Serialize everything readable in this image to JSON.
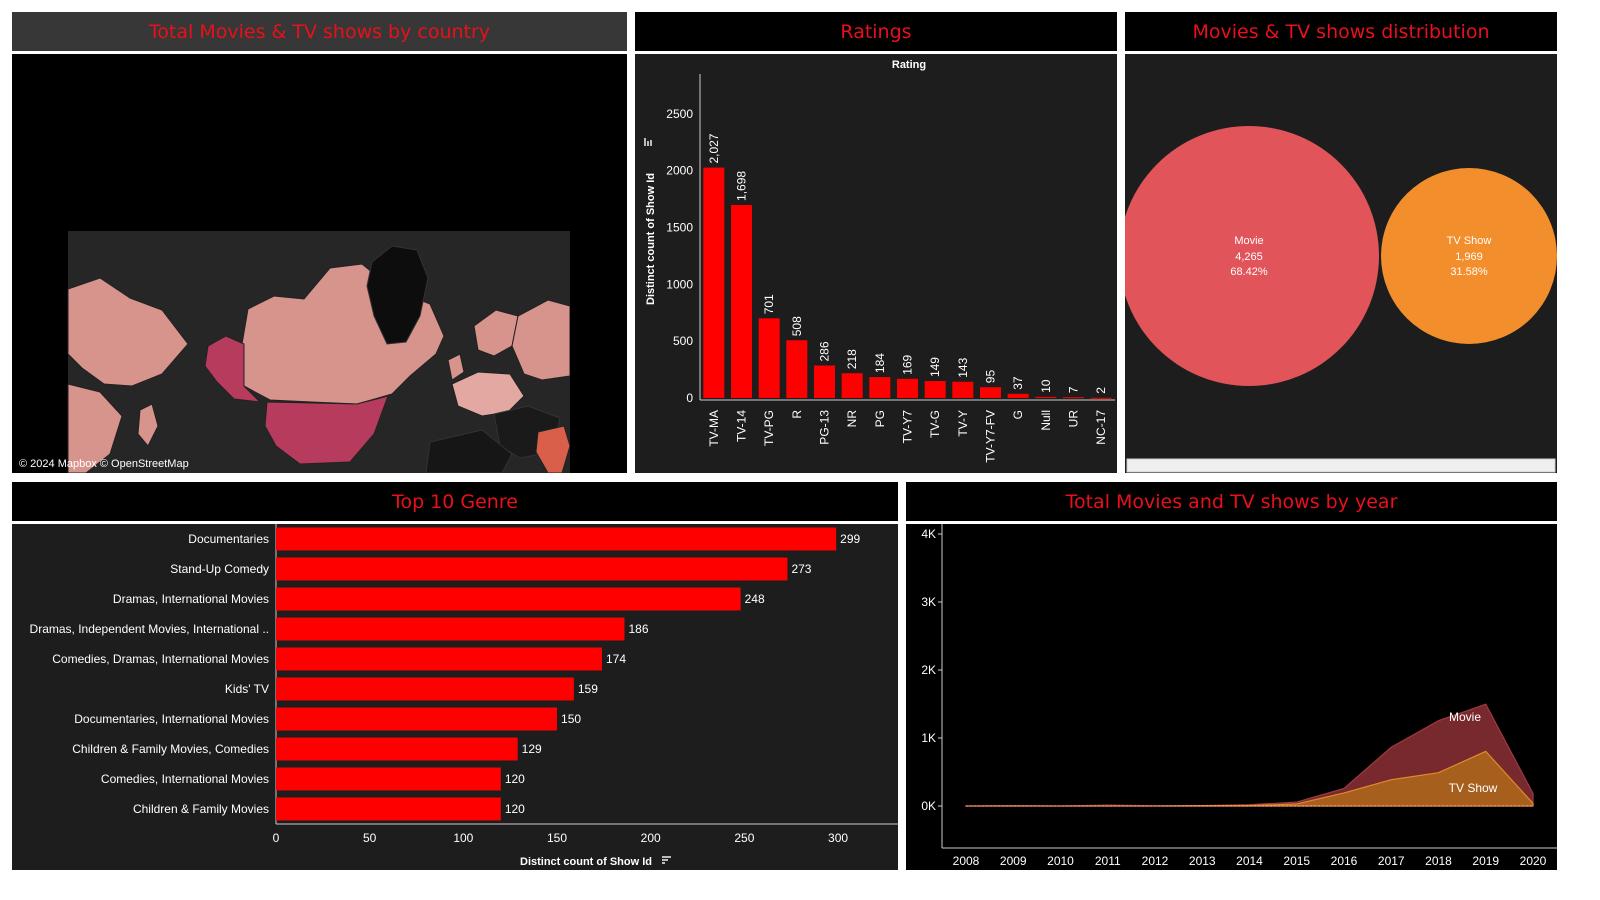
{
  "titles": {
    "map": "Total Movies & TV shows by country",
    "ratings": "Ratings",
    "distribution": "Movies & TV shows distribution",
    "genre": "Top 10 Genre",
    "year": "Total Movies and TV shows by year"
  },
  "map": {
    "attribution": "© 2024 Mapbox © OpenStreetMap"
  },
  "colors": {
    "bar": "#ff0000",
    "title": "#e8101a",
    "movie_bubble": "#e0545a",
    "tv_bubble": "#f28e2b",
    "movie_area": "#7e2b30",
    "tv_area": "#a9621b"
  },
  "chart_data": [
    {
      "id": "ratings",
      "type": "bar",
      "title": "Rating",
      "ylabel": "Distinct count of Show Id",
      "categories": [
        "TV-MA",
        "TV-14",
        "TV-PG",
        "R",
        "PG-13",
        "NR",
        "PG",
        "TV-Y7",
        "TV-G",
        "TV-Y",
        "TV-Y7-FV",
        "G",
        "Null",
        "UR",
        "NC-17"
      ],
      "values": [
        2027,
        1698,
        701,
        508,
        286,
        218,
        184,
        169,
        149,
        143,
        95,
        37,
        10,
        7,
        2
      ],
      "value_labels": [
        "2,027",
        "1,698",
        "701",
        "508",
        "286",
        "218",
        "184",
        "169",
        "149",
        "143",
        "95",
        "37",
        "10",
        "7",
        "2"
      ],
      "yticks": [
        "0",
        "500",
        "1000",
        "1500",
        "2000",
        "2500"
      ],
      "ylim": [
        0,
        2850
      ]
    },
    {
      "id": "distribution",
      "type": "bubble",
      "series": [
        {
          "name": "Movie",
          "value": 4265,
          "value_label": "4,265",
          "percent": "68.42%"
        },
        {
          "name": "TV Show",
          "value": 1969,
          "value_label": "1,969",
          "percent": "31.58%"
        }
      ]
    },
    {
      "id": "genre",
      "type": "bar",
      "orientation": "horizontal",
      "xlabel": "Distinct count of Show Id",
      "categories": [
        "Documentaries",
        "Stand-Up Comedy",
        "Dramas, International Movies",
        "Dramas, Independent Movies, International ..",
        "Comedies, Dramas, International Movies",
        "Kids' TV",
        "Documentaries, International Movies",
        "Children & Family Movies, Comedies",
        "Comedies, International Movies",
        "Children & Family Movies"
      ],
      "values": [
        299,
        273,
        248,
        186,
        174,
        159,
        150,
        129,
        120,
        120
      ],
      "xticks": [
        "0",
        "50",
        "100",
        "150",
        "200",
        "250",
        "300"
      ],
      "xlim": [
        0,
        332
      ]
    },
    {
      "id": "year",
      "type": "area",
      "stacked": false,
      "x": [
        "2008",
        "2009",
        "2010",
        "2011",
        "2012",
        "2013",
        "2014",
        "2015",
        "2016",
        "2017",
        "2018",
        "2019",
        "2020"
      ],
      "yticks": [
        "0K",
        "1K",
        "2K",
        "3K",
        "4K"
      ],
      "ylim": [
        0,
        4000
      ],
      "series": [
        {
          "name": "Movie",
          "values": [
            1,
            2,
            1,
            13,
            3,
            6,
            19,
            58,
            258,
            864,
            1255,
            1497,
            184
          ]
        },
        {
          "name": "TV Show",
          "values": [
            1,
            2,
            1,
            0,
            0,
            5,
            5,
            30,
            192,
            387,
            490,
            803,
            38
          ]
        }
      ]
    }
  ]
}
